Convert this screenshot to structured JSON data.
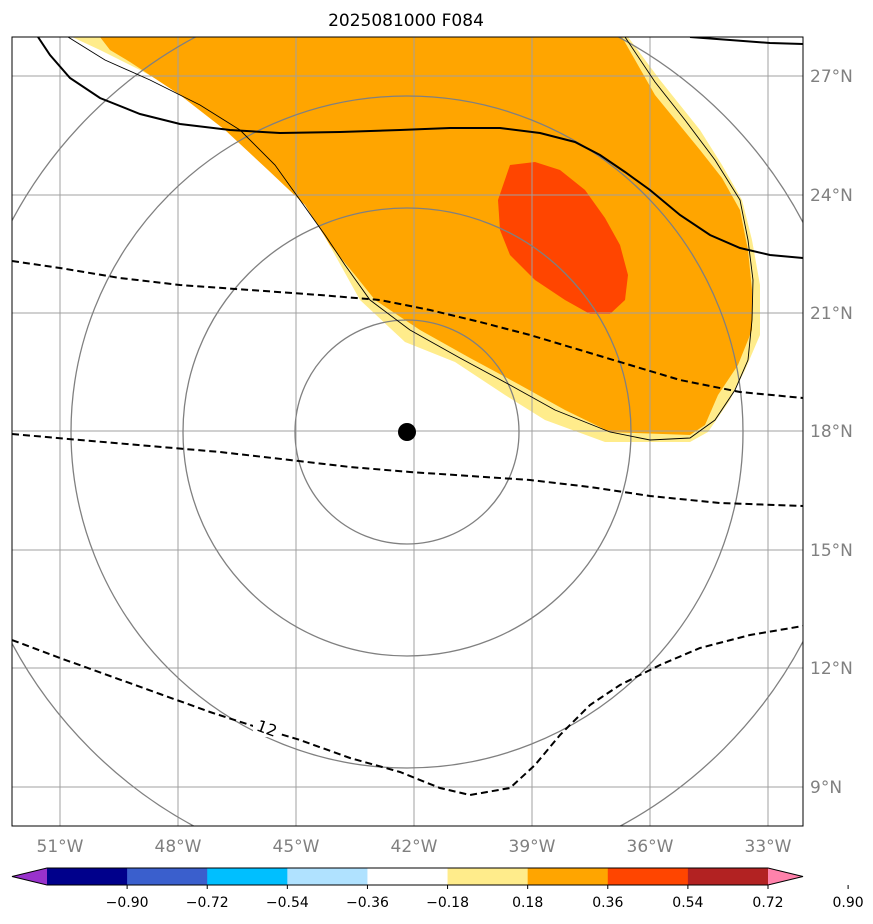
{
  "title": "2025081000 F084",
  "lon_labels": [
    "51°W",
    "48°W",
    "45°W",
    "42°W",
    "39°W",
    "36°W",
    "33°W"
  ],
  "lat_labels": [
    "27°N",
    "24°N",
    "21°N",
    "18°N",
    "15°N",
    "12°N",
    "9°N"
  ],
  "contour_label": "12",
  "colorbar": {
    "ticks": [
      "−0.90",
      "−0.72",
      "−0.54",
      "−0.36",
      "−0.18",
      "0.18",
      "0.36",
      "0.54",
      "0.72",
      "0.90"
    ],
    "colors": [
      "#9932cc",
      "#00008b",
      "#3a5fcd",
      "#00bfff",
      "#b0e2ff",
      "#ffffff",
      "#ffec8b",
      "#ffa500",
      "#ff4500",
      "#b22222",
      "#ff82ab"
    ]
  },
  "center_marker": {
    "lon": -42.2,
    "lat": 18.0,
    "color": "#000000"
  },
  "range_rings": 4,
  "colors": {
    "fill_036": "#ffec8b",
    "fill_054": "#ffa500",
    "fill_072": "#ff4500",
    "grid": "#a0a0a0",
    "ring": "#808080",
    "label": "#808080"
  }
}
